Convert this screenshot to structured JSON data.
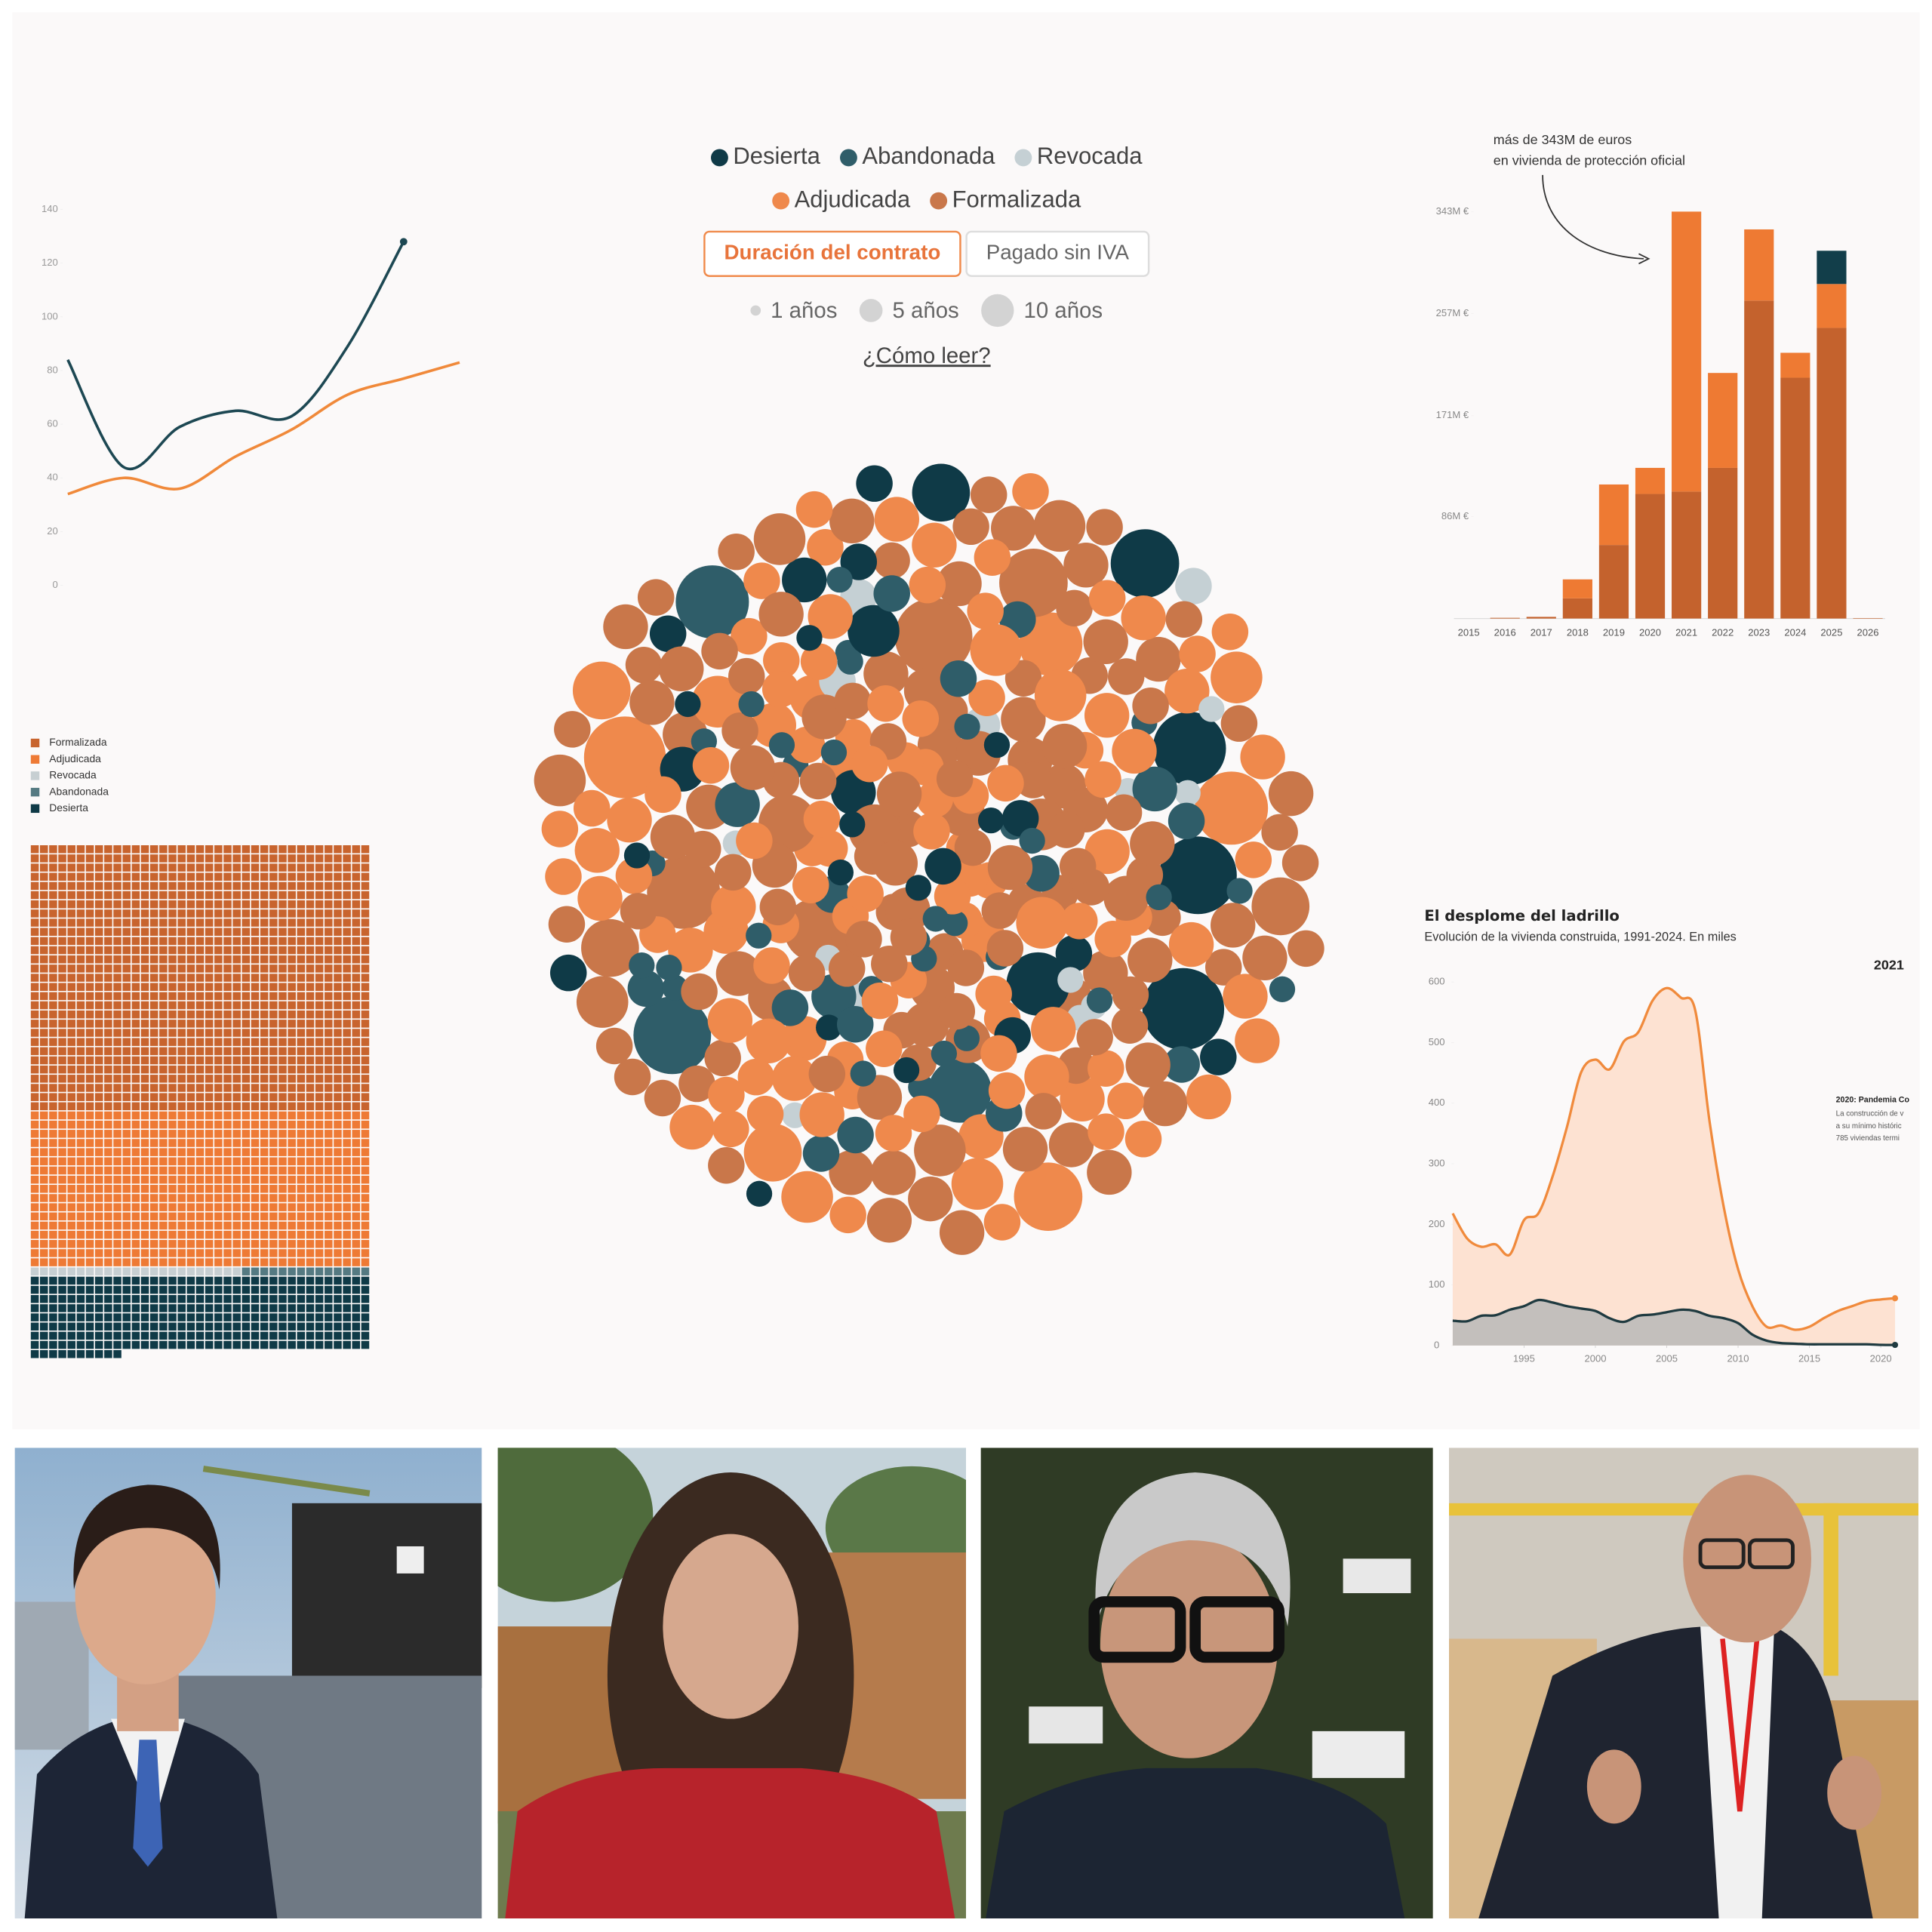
{
  "chart_data": [
    {
      "type": "line",
      "categories": [
        null,
        null,
        null,
        null,
        null,
        null,
        null,
        null
      ],
      "series": [
        {
          "color": "#1d4853",
          "end_marker": true,
          "values": [
            84,
            44,
            59,
            65,
            63,
            89,
            128,
            null
          ]
        },
        {
          "color": "#f0893a",
          "values": [
            34,
            40,
            36,
            48,
            58,
            71,
            77,
            83
          ]
        }
      ],
      "ylim": [
        0,
        140
      ],
      "yticks": [
        0,
        20,
        40,
        60,
        80,
        100,
        120,
        140
      ]
    },
    {
      "type": "packed-bubble",
      "series": [
        {
          "name": "Desierta",
          "color": "#0f3a47",
          "values": [
            10,
            9,
            8,
            7,
            6,
            5,
            4,
            3,
            3,
            2,
            2,
            2,
            2,
            1,
            1,
            2,
            3,
            1,
            2,
            1,
            2,
            1,
            1,
            2,
            1,
            1,
            2,
            1,
            1,
            1
          ]
        },
        {
          "name": "Abandonada",
          "color": "#2f5d69",
          "values": [
            9,
            8,
            6,
            2,
            1,
            2,
            1,
            1,
            2,
            3,
            1,
            1,
            2,
            1,
            2,
            1,
            1,
            1,
            2,
            1,
            3,
            1,
            1,
            2,
            1,
            1,
            1,
            2,
            1,
            1,
            2,
            1,
            1,
            1,
            2,
            1,
            1,
            3,
            1,
            1,
            2,
            1,
            1,
            1,
            2,
            1,
            1,
            1,
            2,
            1
          ]
        },
        {
          "name": "Revocada",
          "color": "#c5d0d4",
          "values": [
            2,
            2,
            1,
            1,
            1,
            2,
            1,
            1,
            1,
            1,
            2,
            1,
            1,
            1
          ]
        },
        {
          "name": "Adjudicada",
          "color": "#ef894c",
          "values": [
            10,
            8,
            7,
            6,
            3,
            2,
            3,
            2,
            2,
            3,
            2,
            3,
            2,
            2,
            4,
            2,
            3,
            2,
            2,
            3,
            3,
            2,
            2,
            3,
            2,
            4,
            2,
            3,
            2,
            2,
            2,
            3,
            5,
            2,
            2,
            3,
            2,
            2,
            3,
            2,
            4,
            2,
            3,
            2,
            2,
            3,
            2,
            2,
            2,
            3,
            2,
            2,
            3,
            2,
            4,
            2,
            2,
            3,
            2,
            2,
            3,
            2,
            2,
            2,
            3,
            2,
            5,
            2,
            2,
            3,
            2,
            3,
            2,
            2,
            2,
            3,
            2,
            4,
            2,
            2,
            2,
            2,
            3,
            2,
            2,
            3,
            2,
            2,
            3,
            2,
            3,
            2,
            2,
            4,
            2,
            2,
            3,
            2,
            2,
            2,
            2,
            3,
            2,
            2,
            3,
            2,
            2,
            2,
            3,
            2,
            2,
            2,
            3,
            2,
            2,
            4,
            2,
            3,
            2,
            2
          ]
        },
        {
          "name": "Formalizada",
          "color": "#c9774a",
          "values": [
            9,
            8,
            7,
            6,
            5,
            3,
            2,
            3,
            2,
            3,
            2,
            3,
            3,
            2,
            4,
            2,
            3,
            2,
            3,
            3,
            3,
            2,
            2,
            3,
            3,
            4,
            2,
            3,
            2,
            2,
            2,
            3,
            5,
            2,
            3,
            3,
            2,
            2,
            3,
            2,
            4,
            2,
            3,
            2,
            2,
            3,
            3,
            2,
            2,
            3,
            2,
            3,
            3,
            2,
            4,
            2,
            2,
            3,
            2,
            3,
            3,
            2,
            2,
            3,
            3,
            2,
            5,
            2,
            2,
            3,
            2,
            3,
            2,
            3,
            2,
            3,
            2,
            4,
            2,
            2,
            2,
            2,
            3,
            2,
            3,
            3,
            2,
            2,
            3,
            2,
            3,
            2,
            3,
            4,
            2,
            2,
            3,
            2,
            2,
            3,
            2,
            3,
            2,
            2,
            3,
            2,
            3,
            2,
            3,
            2,
            2,
            2,
            3,
            2,
            2,
            4,
            2,
            3,
            2,
            3,
            3,
            2,
            2,
            3,
            2,
            2,
            3,
            2,
            2,
            3,
            2,
            3,
            2,
            2,
            3,
            2,
            2,
            3,
            2,
            2
          ]
        }
      ],
      "buttons": [
        "Duración del contrato",
        "Pagado sin IVA"
      ],
      "active_button": 0,
      "size_legend": [
        {
          "value": 1,
          "label": "1 años"
        },
        {
          "value": 5,
          "label": "5 años"
        },
        {
          "value": 10,
          "label": "10 años"
        }
      ],
      "link": "¿Cómo leer?"
    },
    {
      "type": "stacked-bar",
      "annotation": [
        "más de 343M de euros",
        "en vivienda de protección oficial"
      ],
      "categories": [
        "2015",
        "2016",
        "2017",
        "2018",
        "2019",
        "2020",
        "2021",
        "2022",
        "2023",
        "2024",
        "2025",
        "2026"
      ],
      "series": [
        {
          "color": "#c4622d",
          "values": [
            0,
            0.6,
            1.4,
            17,
            62,
            105,
            107,
            127,
            268,
            203,
            245,
            0.4
          ]
        },
        {
          "color": "#ee7a33",
          "values": [
            0,
            0,
            0,
            16,
            51,
            22,
            236,
            80,
            60,
            21,
            37,
            0
          ]
        },
        {
          "color": "#123e4a",
          "values": [
            0,
            0,
            0,
            0,
            0,
            0,
            0,
            0,
            0,
            0,
            28,
            0
          ]
        }
      ],
      "ylim": [
        0,
        350
      ],
      "yticks": [
        {
          "value": 86,
          "label": "86M €"
        },
        {
          "value": 171,
          "label": "171M €"
        },
        {
          "value": 257,
          "label": "257M €"
        },
        {
          "value": 343,
          "label": "343M €"
        }
      ]
    },
    {
      "type": "waffle",
      "series": [
        {
          "name": "Formalizada",
          "color": "#c8642e",
          "values": 1073
        },
        {
          "name": "Adjudicada",
          "color": "#ee7a35",
          "values": 629
        },
        {
          "name": "Revocada",
          "color": "#c7cfd2",
          "values": 23
        },
        {
          "name": "Abandonada",
          "color": "#557a82",
          "values": 14
        },
        {
          "name": "Desierta",
          "color": "#0f3a47",
          "values": 306
        }
      ]
    },
    {
      "type": "area",
      "title": "El desplome del ladrillo",
      "subtitle": "Evolución de la vivienda construida, 1991-2024. En miles",
      "end_label": "2021",
      "annotation": [
        "2020: Pandemia Co",
        "La construcción de v",
        "a su mínimo históric",
        "785 viviendas termi"
      ],
      "x": [
        1990,
        1991,
        1992,
        1993,
        1994,
        1995,
        1996,
        1997,
        1998,
        1999,
        2000,
        2001,
        2002,
        2003,
        2004,
        2005,
        2006,
        2007,
        2008,
        2009,
        2010,
        2011,
        2012,
        2013,
        2014,
        2015,
        2016,
        2017,
        2018,
        2019,
        2020,
        2021
      ],
      "series": [
        {
          "color": "#f08a3c",
          "fill": "#fde2d2",
          "values": [
            218,
            177,
            163,
            167,
            150,
            207,
            218,
            279,
            360,
            451,
            472,
            456,
            502,
            517,
            569,
            590,
            574,
            553,
            370,
            228,
            126,
            65,
            31,
            33,
            26,
            31,
            45,
            57,
            65,
            73,
            76,
            78
          ]
        },
        {
          "color": "#1f3a40",
          "fill": "#b8b8b8",
          "values": [
            41,
            40,
            49,
            50,
            59,
            65,
            75,
            71,
            65,
            61,
            57,
            45,
            39,
            49,
            51,
            55,
            59,
            57,
            49,
            45,
            37,
            18,
            8,
            4,
            3,
            2,
            2,
            2,
            2,
            2,
            1,
            1
          ]
        }
      ],
      "xlim": [
        1990,
        2021
      ],
      "xticks": [
        1995,
        2000,
        2005,
        2010,
        2015,
        2020
      ],
      "ylim": [
        0,
        600
      ],
      "yticks": [
        0,
        100,
        200,
        300,
        400,
        500,
        600
      ]
    }
  ]
}
